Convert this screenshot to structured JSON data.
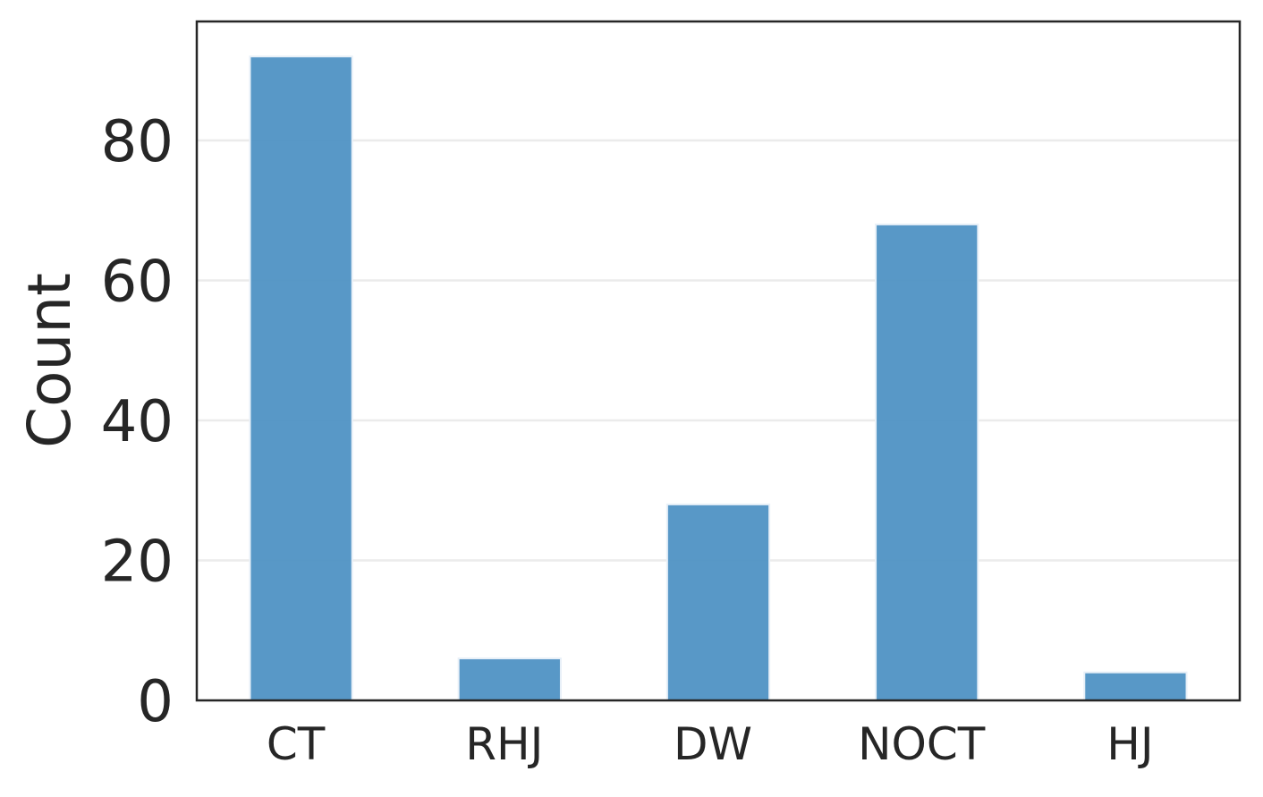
{
  "chart_data": {
    "type": "bar",
    "categories": [
      "CT",
      "RHJ",
      "DW",
      "NOCT",
      "HJ"
    ],
    "values": [
      92,
      6,
      28,
      68,
      4
    ],
    "title": "",
    "xlabel": "",
    "ylabel": "Count",
    "ylim": [
      0,
      97
    ],
    "yticks": [
      0,
      20,
      40,
      60,
      80
    ],
    "grid": "horizontal",
    "bar_color": "#4a8fc2",
    "legend": "none"
  }
}
